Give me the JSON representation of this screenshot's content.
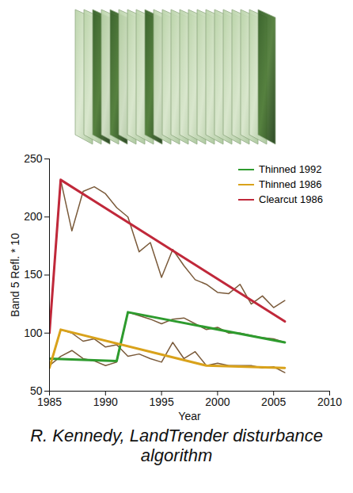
{
  "chart_data": {
    "type": "line",
    "x_label": "Year",
    "y_label": "Band 5 Refl. * 10",
    "caption": "R. Kennedy, LandTrender disturbance algorithm",
    "xlim": [
      1985,
      2010
    ],
    "xticks": [
      1985,
      1990,
      1995,
      2000,
      2005,
      2010
    ],
    "ylim": [
      50,
      250
    ],
    "yticks": [
      50,
      100,
      150,
      200,
      250
    ],
    "legend": "top-right",
    "series": [
      {
        "color": "#7a5a3a",
        "x": [
          1985,
          1986,
          1987,
          1988,
          1989,
          1990,
          1991,
          1992,
          1993,
          1994,
          1995,
          1996,
          1997,
          1998,
          1999,
          2000,
          2001,
          2002,
          2003,
          2004,
          2005,
          2006
        ],
        "values": [
          72,
          80,
          85,
          78,
          76,
          72,
          75,
          118,
          115,
          112,
          108,
          112,
          113,
          108,
          103,
          105,
          100,
          100,
          98,
          96,
          95,
          92
        ]
      },
      {
        "color": "#7a5a3a",
        "x": [
          1985,
          1986,
          1987,
          1988,
          1989,
          1990,
          1991,
          1992,
          1993,
          1994,
          1995,
          1996,
          1997,
          1998,
          1999,
          2000,
          2001,
          2002,
          2003,
          2004,
          2005,
          2006
        ],
        "values": [
          70,
          103,
          100,
          93,
          95,
          88,
          90,
          80,
          82,
          78,
          75,
          92,
          78,
          84,
          72,
          74,
          72,
          72,
          72,
          70,
          71,
          66
        ]
      },
      {
        "color": "#7a5a3a",
        "x": [
          1985,
          1986,
          1987,
          1988,
          1989,
          1990,
          1991,
          1992,
          1993,
          1994,
          1995,
          1996,
          1997,
          1998,
          1999,
          2000,
          2001,
          2002,
          2003,
          2004,
          2005,
          2006
        ],
        "values": [
          100,
          232,
          188,
          222,
          226,
          220,
          208,
          200,
          170,
          178,
          148,
          172,
          158,
          146,
          142,
          135,
          134,
          142,
          125,
          132,
          122,
          128
        ]
      },
      {
        "name": "Thinned 1992",
        "color": "#2e9b2e",
        "x": [
          1985,
          1991,
          1992,
          2006
        ],
        "values": [
          78,
          76,
          118,
          92
        ]
      },
      {
        "name": "Thinned 1986",
        "color": "#d9a21b",
        "x": [
          1985,
          1986,
          1999,
          2006
        ],
        "values": [
          70,
          103,
          72,
          70
        ]
      },
      {
        "name": "Clearcut 1986",
        "color": "#c0283a",
        "x": [
          1985,
          1986,
          2006
        ],
        "values": [
          100,
          232,
          110
        ]
      }
    ]
  }
}
